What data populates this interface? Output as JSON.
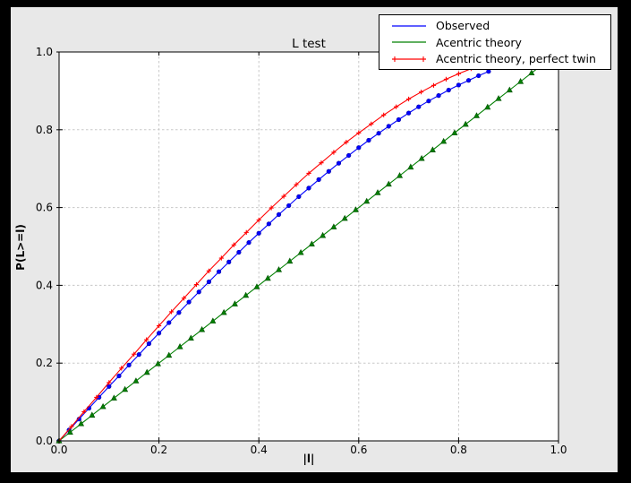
{
  "colors": {
    "page_bg": "#000000",
    "figure_bg": "#e8e8e8",
    "plot_bg": "#ffffff",
    "frame": "#000000",
    "grid": "#c8c8c8"
  },
  "chart_data": {
    "type": "line",
    "title": "L test",
    "xlabel": "|l|",
    "ylabel": "P(L>=l)",
    "xlim": [
      0.0,
      1.0
    ],
    "ylim": [
      0.0,
      1.0
    ],
    "xticks": [
      "0.0",
      "0.2",
      "0.4",
      "0.6",
      "0.8",
      "1.0"
    ],
    "yticks": [
      "0.0",
      "0.2",
      "0.4",
      "0.6",
      "0.8",
      "1.0"
    ],
    "grid": true,
    "grid_style": "dotted",
    "legend_position": "upper right",
    "series": [
      {
        "name": "Observed",
        "color": "#0000ff",
        "marker": "circle",
        "marker_edge": "#0000a0",
        "points": [
          [
            0,
            0
          ],
          [
            0.02,
            0.028
          ],
          [
            0.04,
            0.056
          ],
          [
            0.06,
            0.084
          ],
          [
            0.08,
            0.112
          ],
          [
            0.1,
            0.14
          ],
          [
            0.12,
            0.167
          ],
          [
            0.14,
            0.195
          ],
          [
            0.16,
            0.222
          ],
          [
            0.18,
            0.25
          ],
          [
            0.2,
            0.277
          ],
          [
            0.22,
            0.304
          ],
          [
            0.24,
            0.33
          ],
          [
            0.26,
            0.357
          ],
          [
            0.28,
            0.383
          ],
          [
            0.3,
            0.409
          ],
          [
            0.32,
            0.435
          ],
          [
            0.34,
            0.46
          ],
          [
            0.36,
            0.485
          ],
          [
            0.38,
            0.51
          ],
          [
            0.4,
            0.534
          ],
          [
            0.42,
            0.558
          ],
          [
            0.44,
            0.582
          ],
          [
            0.46,
            0.605
          ],
          [
            0.48,
            0.628
          ],
          [
            0.5,
            0.65
          ],
          [
            0.52,
            0.672
          ],
          [
            0.54,
            0.693
          ],
          [
            0.56,
            0.714
          ],
          [
            0.58,
            0.734
          ],
          [
            0.6,
            0.754
          ],
          [
            0.62,
            0.773
          ],
          [
            0.64,
            0.791
          ],
          [
            0.66,
            0.809
          ],
          [
            0.68,
            0.826
          ],
          [
            0.7,
            0.843
          ],
          [
            0.72,
            0.859
          ],
          [
            0.74,
            0.874
          ],
          [
            0.76,
            0.888
          ],
          [
            0.78,
            0.902
          ],
          [
            0.8,
            0.915
          ],
          [
            0.82,
            0.927
          ],
          [
            0.84,
            0.939
          ],
          [
            0.86,
            0.95
          ]
        ]
      },
      {
        "name": "Acentric theory",
        "color": "#008000",
        "marker": "triangle-up",
        "marker_edge": "#004d00",
        "points": [
          [
            0,
            0
          ],
          [
            0.022,
            0.022
          ],
          [
            0.044,
            0.044
          ],
          [
            0.066,
            0.066
          ],
          [
            0.088,
            0.088
          ],
          [
            0.11,
            0.11
          ],
          [
            0.132,
            0.132
          ],
          [
            0.154,
            0.154
          ],
          [
            0.176,
            0.176
          ],
          [
            0.198,
            0.198
          ],
          [
            0.22,
            0.22
          ],
          [
            0.242,
            0.242
          ],
          [
            0.264,
            0.264
          ],
          [
            0.286,
            0.286
          ],
          [
            0.308,
            0.308
          ],
          [
            0.33,
            0.33
          ],
          [
            0.352,
            0.352
          ],
          [
            0.374,
            0.374
          ],
          [
            0.396,
            0.396
          ],
          [
            0.418,
            0.418
          ],
          [
            0.44,
            0.44
          ],
          [
            0.462,
            0.462
          ],
          [
            0.484,
            0.484
          ],
          [
            0.506,
            0.506
          ],
          [
            0.528,
            0.528
          ],
          [
            0.55,
            0.55
          ],
          [
            0.572,
            0.572
          ],
          [
            0.594,
            0.594
          ],
          [
            0.616,
            0.616
          ],
          [
            0.638,
            0.638
          ],
          [
            0.66,
            0.66
          ],
          [
            0.682,
            0.682
          ],
          [
            0.704,
            0.704
          ],
          [
            0.726,
            0.726
          ],
          [
            0.748,
            0.748
          ],
          [
            0.77,
            0.77
          ],
          [
            0.792,
            0.792
          ],
          [
            0.814,
            0.814
          ],
          [
            0.836,
            0.836
          ],
          [
            0.858,
            0.858
          ],
          [
            0.88,
            0.88
          ],
          [
            0.902,
            0.902
          ],
          [
            0.924,
            0.924
          ],
          [
            0.946,
            0.946
          ],
          [
            0.968,
            0.968
          ]
        ]
      },
      {
        "name": "Acentric theory, perfect twin",
        "color": "#ff0000",
        "marker": "plus",
        "marker_edge": "#ff0000",
        "points": [
          [
            0,
            0
          ],
          [
            0.025,
            0.037
          ],
          [
            0.05,
            0.075
          ],
          [
            0.075,
            0.112
          ],
          [
            0.1,
            0.15
          ],
          [
            0.125,
            0.187
          ],
          [
            0.15,
            0.223
          ],
          [
            0.175,
            0.26
          ],
          [
            0.2,
            0.296
          ],
          [
            0.225,
            0.332
          ],
          [
            0.25,
            0.367
          ],
          [
            0.275,
            0.402
          ],
          [
            0.3,
            0.437
          ],
          [
            0.325,
            0.47
          ],
          [
            0.35,
            0.504
          ],
          [
            0.375,
            0.536
          ],
          [
            0.4,
            0.568
          ],
          [
            0.425,
            0.599
          ],
          [
            0.45,
            0.629
          ],
          [
            0.475,
            0.659
          ],
          [
            0.5,
            0.688
          ],
          [
            0.525,
            0.715
          ],
          [
            0.55,
            0.742
          ],
          [
            0.575,
            0.768
          ],
          [
            0.6,
            0.792
          ],
          [
            0.625,
            0.815
          ],
          [
            0.65,
            0.838
          ],
          [
            0.675,
            0.859
          ],
          [
            0.7,
            0.879
          ],
          [
            0.725,
            0.897
          ],
          [
            0.75,
            0.914
          ],
          [
            0.775,
            0.93
          ],
          [
            0.8,
            0.944
          ],
          [
            0.825,
            0.957
          ],
          [
            0.85,
            0.968
          ]
        ]
      }
    ]
  }
}
